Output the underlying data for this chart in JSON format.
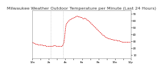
{
  "title": "Milwaukee Weather Outdoor Temperature per Minute (Last 24 Hours)",
  "bg_color": "#ffffff",
  "line_color": "#dd0000",
  "ylim": [
    5,
    75
  ],
  "yticks": [
    10,
    20,
    30,
    40,
    50,
    60,
    70
  ],
  "ytick_labels": [
    "10",
    "20",
    "30",
    "40",
    "50",
    "60",
    "70"
  ],
  "title_fontsize": 4.5,
  "tick_fontsize": 3.0,
  "x_points": [
    0,
    1,
    2,
    3,
    4,
    5,
    6,
    7,
    8,
    9,
    10,
    11,
    12,
    13,
    14,
    15,
    16,
    17,
    18,
    19,
    20,
    21,
    22,
    23,
    24,
    25,
    26,
    27,
    28,
    29,
    30,
    31,
    32,
    33,
    34,
    35,
    36,
    37,
    38,
    39,
    40,
    41,
    42,
    43,
    44,
    45,
    46,
    47,
    48,
    49,
    50,
    51,
    52,
    53,
    54,
    55,
    56,
    57,
    58,
    59,
    60,
    61,
    62,
    63,
    64,
    65,
    66,
    67,
    68,
    69,
    70,
    71,
    72,
    73,
    74,
    75,
    76,
    77,
    78,
    79,
    80,
    81,
    82,
    83,
    84,
    85,
    86,
    87,
    88,
    89,
    90,
    91,
    92,
    93,
    94,
    95,
    96,
    97,
    98,
    99,
    100,
    101,
    102,
    103,
    104,
    105,
    106,
    107,
    108,
    109,
    110,
    111,
    112,
    113,
    114,
    115,
    116,
    117,
    118,
    119,
    120,
    121,
    122,
    123,
    124,
    125,
    126,
    127,
    128,
    129,
    130,
    131,
    132,
    133,
    134,
    135,
    136,
    137,
    138,
    139,
    140,
    141,
    142,
    143
  ],
  "y_points": [
    28,
    27,
    27,
    26,
    26,
    25,
    25,
    25,
    24,
    24,
    24,
    24,
    24,
    24,
    24,
    23,
    23,
    23,
    23,
    23,
    22,
    22,
    22,
    22,
    22,
    22,
    22,
    22,
    22,
    22,
    22,
    23,
    23,
    23,
    23,
    22,
    22,
    22,
    22,
    22,
    22,
    22,
    22,
    22,
    23,
    25,
    28,
    36,
    47,
    54,
    55,
    57,
    58,
    59,
    60,
    61,
    61,
    62,
    62,
    63,
    63,
    64,
    64,
    65,
    65,
    66,
    66,
    65,
    65,
    65,
    64,
    64,
    64,
    63,
    62,
    62,
    63,
    63,
    62,
    61,
    60,
    60,
    59,
    58,
    57,
    56,
    55,
    54,
    53,
    52,
    51,
    50,
    49,
    48,
    47,
    46,
    45,
    44,
    43,
    42,
    41,
    40,
    39,
    38,
    38,
    37,
    36,
    35,
    35,
    34,
    34,
    33,
    33,
    33,
    32,
    32,
    32,
    32,
    31,
    31,
    31,
    31,
    31,
    30,
    30,
    30,
    30,
    30,
    29,
    29,
    29,
    28,
    28,
    28,
    28,
    28,
    28,
    28,
    28,
    28,
    28,
    28,
    28,
    28
  ],
  "vlines": [
    27,
    45
  ],
  "xtick_positions": [
    0,
    12,
    24,
    36,
    48,
    60,
    72,
    84,
    96,
    108,
    120,
    132,
    143
  ],
  "xtick_labels": [
    "12a",
    "",
    "2a",
    "",
    "4a",
    "",
    "6a",
    "",
    "8a",
    "",
    "10a",
    "",
    "12p"
  ]
}
